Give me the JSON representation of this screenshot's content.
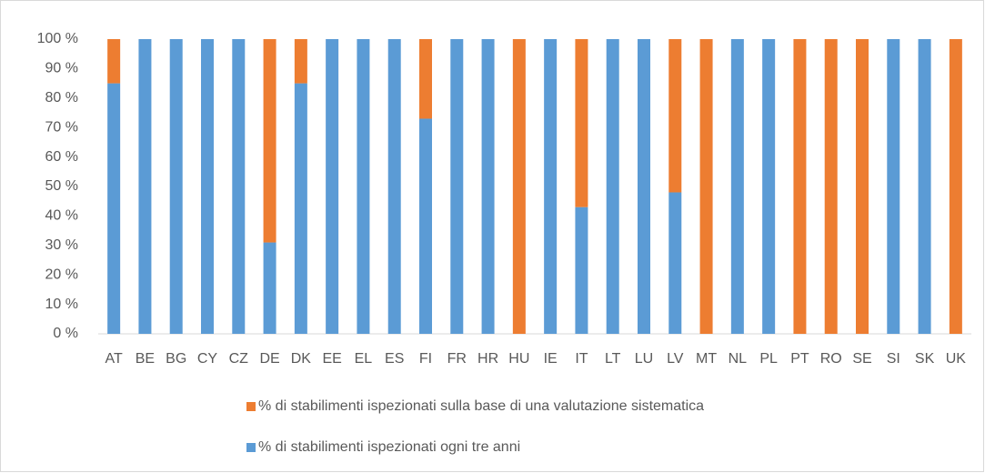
{
  "chart_data": {
    "type": "stacked_bar",
    "categories": [
      "AT",
      "BE",
      "BG",
      "CY",
      "CZ",
      "DE",
      "DK",
      "EE",
      "EL",
      "ES",
      "FI",
      "FR",
      "HR",
      "HU",
      "IE",
      "IT",
      "LT",
      "LU",
      "LV",
      "MT",
      "NL",
      "PL",
      "PT",
      "RO",
      "SE",
      "SI",
      "SK",
      "UK"
    ],
    "series": [
      {
        "name": "% di stabilimenti ispezionati ogni tre anni",
        "color": "#5b9bd5",
        "values": [
          85,
          100,
          100,
          100,
          100,
          31,
          85,
          100,
          100,
          100,
          73,
          100,
          100,
          0,
          100,
          43,
          100,
          100,
          48,
          0,
          100,
          100,
          0,
          0,
          0,
          100,
          100,
          0
        ]
      },
      {
        "name": "% di stabilimenti ispezionati sulla base di una valutazione sistematica",
        "color": "#ed7d31",
        "values": [
          15,
          0,
          0,
          0,
          0,
          69,
          15,
          0,
          0,
          0,
          27,
          0,
          0,
          100,
          0,
          57,
          0,
          0,
          52,
          100,
          0,
          0,
          100,
          100,
          100,
          0,
          0,
          100
        ]
      }
    ],
    "ylim": [
      0,
      100
    ],
    "yticks": [
      {
        "value": 0,
        "label": "0 %"
      },
      {
        "value": 10,
        "label": "10 %"
      },
      {
        "value": 20,
        "label": "20 %"
      },
      {
        "value": 30,
        "label": "30 %"
      },
      {
        "value": 40,
        "label": "40 %"
      },
      {
        "value": 50,
        "label": "50 %"
      },
      {
        "value": 60,
        "label": "60 %"
      },
      {
        "value": 70,
        "label": "70 %"
      },
      {
        "value": 80,
        "label": "80 %"
      },
      {
        "value": 90,
        "label": "90 %"
      },
      {
        "value": 100,
        "label": "100 %"
      }
    ],
    "grid": false
  }
}
